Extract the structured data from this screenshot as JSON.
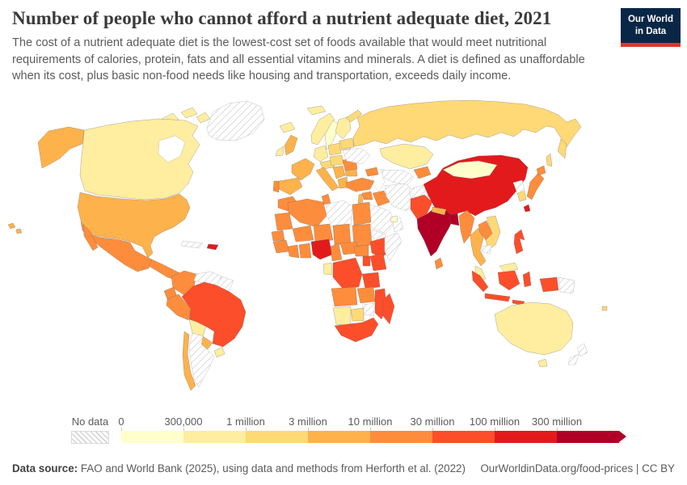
{
  "header": {
    "title": "Number of people who cannot afford a nutrient adequate diet, 2021",
    "subtitle": "The cost of a nutrient adequate diet is the lowest-cost set of foods available that would meet nutritional requirements of calories, protein, fats and all essential vitamins and minerals. A diet is defined as unaffordable when its cost, plus basic non-food needs like housing and transportation, exceeds daily income."
  },
  "logo": {
    "line1": "Our World",
    "line2": "in Data",
    "bg_color": "#0a2647",
    "accent_color": "#dc362c"
  },
  "legend": {
    "no_data_label": "No data",
    "tick_labels": [
      "0",
      "300,000",
      "1 million",
      "3 million",
      "10 million",
      "30 million",
      "100 million",
      "300 million"
    ],
    "bin_colors": [
      "#FFFFCC",
      "#FFEDA0",
      "#FED976",
      "#FEB24C",
      "#FD8D3C",
      "#FC4E2A",
      "#E31A1C",
      "#B10026"
    ]
  },
  "footer": {
    "source_label": "Data source:",
    "source_text": " FAO and World Bank (2025), using data and methods from Herforth et al. (2022)",
    "credit": "OurWorldinData.org/food-prices | CC BY"
  },
  "chart_data": {
    "type": "choropleth-map",
    "title": "Number of people who cannot afford a nutrient adequate diet, 2021",
    "bins": [
      "0-300,000",
      "300,000-1 million",
      "1-3 million",
      "3-10 million",
      "10-30 million",
      "30-100 million",
      "100-300 million",
      "over 300 million"
    ],
    "regions": [
      {
        "id": "greenland",
        "name": "Greenland",
        "bin": "no_data"
      },
      {
        "id": "arctic-islands",
        "name": "Canada (Arctic islands)",
        "bin": 1
      },
      {
        "id": "canada",
        "name": "Canada",
        "bin": 1
      },
      {
        "id": "alaska",
        "name": "United States (Alaska)",
        "bin": 3
      },
      {
        "id": "usa",
        "name": "United States",
        "bin": 3
      },
      {
        "id": "hawaii",
        "name": "United States (Hawaii)",
        "bin": 3
      },
      {
        "id": "mexico",
        "name": "Mexico",
        "bin": 4
      },
      {
        "id": "central-america",
        "name": "Central America",
        "bin": 4
      },
      {
        "id": "cuba",
        "name": "Cuba",
        "bin": "no_data"
      },
      {
        "id": "hispaniola",
        "name": "Haiti / Dominican Republic",
        "bin": 6
      },
      {
        "id": "colombia",
        "name": "Colombia",
        "bin": 4
      },
      {
        "id": "venezuela",
        "name": "Venezuela",
        "bin": "no_data"
      },
      {
        "id": "guyanas",
        "name": "Guyana / Suriname",
        "bin": "no_data"
      },
      {
        "id": "ecuador",
        "name": "Ecuador",
        "bin": 4
      },
      {
        "id": "peru",
        "name": "Peru",
        "bin": 4
      },
      {
        "id": "brazil",
        "name": "Brazil",
        "bin": 5
      },
      {
        "id": "bolivia",
        "name": "Bolivia",
        "bin": 1
      },
      {
        "id": "paraguay",
        "name": "Paraguay",
        "bin": 3
      },
      {
        "id": "uruguay",
        "name": "Uruguay",
        "bin": 1
      },
      {
        "id": "argentina",
        "name": "Argentina",
        "bin": "no_data"
      },
      {
        "id": "chile",
        "name": "Chile",
        "bin": 3
      },
      {
        "id": "iceland",
        "name": "Iceland",
        "bin": 1
      },
      {
        "id": "norway",
        "name": "Norway",
        "bin": 1
      },
      {
        "id": "sweden",
        "name": "Sweden",
        "bin": 0
      },
      {
        "id": "finland",
        "name": "Finland",
        "bin": 1
      },
      {
        "id": "svalbard",
        "name": "Svalbard",
        "bin": 1
      },
      {
        "id": "baltics",
        "name": "Baltic states",
        "bin": 1
      },
      {
        "id": "uk",
        "name": "United Kingdom",
        "bin": 3
      },
      {
        "id": "ireland",
        "name": "Ireland",
        "bin": 1
      },
      {
        "id": "france",
        "name": "France",
        "bin": 3
      },
      {
        "id": "spain",
        "name": "Spain",
        "bin": 3
      },
      {
        "id": "portugal",
        "name": "Portugal",
        "bin": 4
      },
      {
        "id": "germany",
        "name": "Germany",
        "bin": 1
      },
      {
        "id": "alpine",
        "name": "Switzerland / Austria",
        "bin": 2
      },
      {
        "id": "italy",
        "name": "Italy",
        "bin": 3
      },
      {
        "id": "poland",
        "name": "Poland",
        "bin": 2
      },
      {
        "id": "central-europe",
        "name": "Czechia / Slovakia / Hungary",
        "bin": 2
      },
      {
        "id": "romania",
        "name": "Romania",
        "bin": 4
      },
      {
        "id": "balkans",
        "name": "Balkans",
        "bin": 3
      },
      {
        "id": "bulgaria",
        "name": "Bulgaria",
        "bin": 3
      },
      {
        "id": "greece",
        "name": "Greece",
        "bin": 3
      },
      {
        "id": "belarus",
        "name": "Belarus",
        "bin": 2
      },
      {
        "id": "ukraine",
        "name": "Ukraine",
        "bin": "no_data"
      },
      {
        "id": "russia",
        "name": "Russia",
        "bin": 2
      },
      {
        "id": "kazakhstan",
        "name": "Kazakhstan",
        "bin": 1
      },
      {
        "id": "central-asia",
        "name": "Turkmenistan / Uzbekistan",
        "bin": "no_data"
      },
      {
        "id": "kyrgyz-tajik",
        "name": "Kyrgyzstan / Tajikistan",
        "bin": 4
      },
      {
        "id": "caucasus",
        "name": "Caucasus",
        "bin": 4
      },
      {
        "id": "turkey",
        "name": "Turkey",
        "bin": 4
      },
      {
        "id": "syria",
        "name": "Syria",
        "bin": 4
      },
      {
        "id": "levant",
        "name": "Jordan / Israel",
        "bin": 3
      },
      {
        "id": "iraq",
        "name": "Iraq",
        "bin": 4
      },
      {
        "id": "iran",
        "name": "Iran",
        "bin": "no_data"
      },
      {
        "id": "saudi-arabia",
        "name": "Saudi Arabia",
        "bin": "no_data"
      },
      {
        "id": "yemen",
        "name": "Yemen",
        "bin": "no_data"
      },
      {
        "id": "oman",
        "name": "Oman",
        "bin": "no_data"
      },
      {
        "id": "gulf-states",
        "name": "Gulf states",
        "bin": 0
      },
      {
        "id": "afghanistan",
        "name": "Afghanistan",
        "bin": "no_data"
      },
      {
        "id": "pakistan",
        "name": "Pakistan",
        "bin": 5
      },
      {
        "id": "india",
        "name": "India",
        "bin": 7
      },
      {
        "id": "nepal",
        "name": "Nepal",
        "bin": 3
      },
      {
        "id": "bangladesh",
        "name": "Bangladesh",
        "bin": 7
      },
      {
        "id": "sri-lanka",
        "name": "Sri Lanka",
        "bin": 4
      },
      {
        "id": "china",
        "name": "China",
        "bin": 6
      },
      {
        "id": "mongolia",
        "name": "Mongolia",
        "bin": 0
      },
      {
        "id": "taiwan",
        "name": "Taiwan",
        "bin": 6
      },
      {
        "id": "myanmar",
        "name": "Myanmar",
        "bin": 4
      },
      {
        "id": "thailand",
        "name": "Thailand",
        "bin": 3
      },
      {
        "id": "laos",
        "name": "Laos",
        "bin": 4
      },
      {
        "id": "vietnam",
        "name": "Vietnam",
        "bin": 2
      },
      {
        "id": "cambodia",
        "name": "Cambodia",
        "bin": "no_data"
      },
      {
        "id": "malaysia",
        "name": "Malaysia",
        "bin": 1
      },
      {
        "id": "indonesia",
        "name": "Indonesia",
        "bin": 5
      },
      {
        "id": "papua-new-guinea",
        "name": "Papua New Guinea",
        "bin": "no_data"
      },
      {
        "id": "philippines",
        "name": "Philippines",
        "bin": 5
      },
      {
        "id": "japan",
        "name": "Japan",
        "bin": 4
      },
      {
        "id": "south-korea",
        "name": "South Korea",
        "bin": 2
      },
      {
        "id": "north-korea",
        "name": "North Korea",
        "bin": "no_data"
      },
      {
        "id": "australia",
        "name": "Australia",
        "bin": 1
      },
      {
        "id": "new-zealand",
        "name": "New Zealand",
        "bin": "no_data"
      },
      {
        "id": "fiji",
        "name": "Fiji",
        "bin": 2
      },
      {
        "id": "morocco",
        "name": "Morocco",
        "bin": 4
      },
      {
        "id": "algeria",
        "name": "Algeria",
        "bin": 4
      },
      {
        "id": "tunisia",
        "name": "Tunisia",
        "bin": 4
      },
      {
        "id": "libya",
        "name": "Libya",
        "bin": "no_data"
      },
      {
        "id": "egypt",
        "name": "Egypt",
        "bin": 4
      },
      {
        "id": "mauritania",
        "name": "Mauritania",
        "bin": 4
      },
      {
        "id": "mali",
        "name": "Mali",
        "bin": 4
      },
      {
        "id": "niger",
        "name": "Niger",
        "bin": 4
      },
      {
        "id": "chad",
        "name": "Chad",
        "bin": 4
      },
      {
        "id": "sudan",
        "name": "Sudan",
        "bin": 4
      },
      {
        "id": "senegal",
        "name": "Senegal",
        "bin": 4
      },
      {
        "id": "guinea",
        "name": "Guinea",
        "bin": 4
      },
      {
        "id": "ivory-coast",
        "name": "Côte d'Ivoire",
        "bin": 4
      },
      {
        "id": "ghana",
        "name": "Ghana",
        "bin": 4
      },
      {
        "id": "nigeria",
        "name": "Nigeria",
        "bin": 6
      },
      {
        "id": "cameroon",
        "name": "Cameroon",
        "bin": 4
      },
      {
        "id": "central-african-republic",
        "name": "Central African Republic",
        "bin": 4
      },
      {
        "id": "south-sudan",
        "name": "South Sudan",
        "bin": 4
      },
      {
        "id": "ethiopia",
        "name": "Ethiopia",
        "bin": 5
      },
      {
        "id": "somalia",
        "name": "Somalia",
        "bin": "no_data"
      },
      {
        "id": "kenya",
        "name": "Kenya",
        "bin": 5
      },
      {
        "id": "uganda",
        "name": "Uganda",
        "bin": 5
      },
      {
        "id": "drc",
        "name": "Democratic Republic of Congo",
        "bin": 5
      },
      {
        "id": "gabon",
        "name": "Gabon",
        "bin": 1
      },
      {
        "id": "tanzania",
        "name": "Tanzania",
        "bin": 5
      },
      {
        "id": "angola",
        "name": "Angola",
        "bin": 4
      },
      {
        "id": "zambia",
        "name": "Zambia",
        "bin": 4
      },
      {
        "id": "mozambique",
        "name": "Mozambique",
        "bin": 5
      },
      {
        "id": "zimbabwe",
        "name": "Zimbabwe",
        "bin": "no_data"
      },
      {
        "id": "namibia",
        "name": "Namibia",
        "bin": 1
      },
      {
        "id": "botswana",
        "name": "Botswana",
        "bin": 2
      },
      {
        "id": "south-africa",
        "name": "South Africa",
        "bin": 5
      },
      {
        "id": "madagascar",
        "name": "Madagascar",
        "bin": 5
      }
    ]
  }
}
